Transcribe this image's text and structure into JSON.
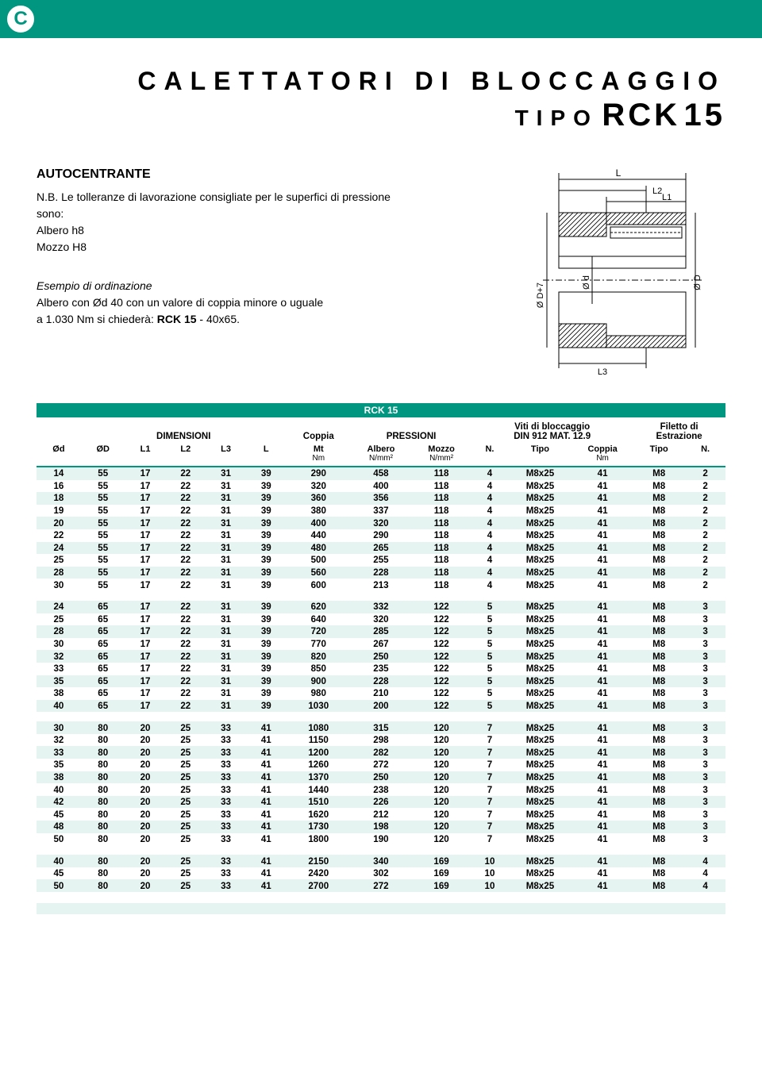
{
  "topbar": {
    "logo_letter": "C",
    "bg": "#009680"
  },
  "title": {
    "line1": "CALETTATORI DI BLOCCAGGIO",
    "tipo": "TIPO",
    "model": "RCK",
    "num": "15"
  },
  "note": {
    "heading": "AUTOCENTRANTE",
    "nb": "N.B. Le tolleranze di lavorazione consigliate per le superfici di pressione sono:",
    "line_a": "Albero h8",
    "line_b": "Mozzo H8",
    "example_head": "Esempio di ordinazione",
    "example_body1": "Albero con Ød 40 con un valore di coppia minore o uguale",
    "example_body2a": "a 1.030 Nm si chiederà: ",
    "example_body2b": "RCK 15",
    "example_body2c": " - 40x65."
  },
  "diagram_labels": {
    "L": "L",
    "L1": "L1",
    "L2": "L2",
    "L3": "L3",
    "d": "Ø d",
    "D": "Ø D",
    "D7": "Ø D+7"
  },
  "table": {
    "title": "RCK 15",
    "groups": {
      "dim": "DIMENSIONI",
      "coppia": "Coppia",
      "press": "PRESSIONI",
      "viti1": "Viti di bloccaggio",
      "viti2": "DIN 912 MAT. 12.9",
      "fil1": "Filetto di",
      "fil2": "Estrazione"
    },
    "cols": [
      "Ød",
      "ØD",
      "L1",
      "L2",
      "L3",
      "L",
      "Mt",
      "Albero",
      "Mozzo",
      "N.",
      "Tipo",
      "Coppia",
      "Tipo",
      "N."
    ],
    "units": [
      "",
      "",
      "",
      "",
      "",
      "",
      "Nm",
      "N/mm²",
      "N/mm²",
      "",
      "",
      "Nm",
      "",
      ""
    ],
    "blocks": [
      [
        [
          "14",
          "55",
          "17",
          "22",
          "31",
          "39",
          "290",
          "458",
          "118",
          "4",
          "M8x25",
          "41",
          "M8",
          "2"
        ],
        [
          "16",
          "55",
          "17",
          "22",
          "31",
          "39",
          "320",
          "400",
          "118",
          "4",
          "M8x25",
          "41",
          "M8",
          "2"
        ],
        [
          "18",
          "55",
          "17",
          "22",
          "31",
          "39",
          "360",
          "356",
          "118",
          "4",
          "M8x25",
          "41",
          "M8",
          "2"
        ],
        [
          "19",
          "55",
          "17",
          "22",
          "31",
          "39",
          "380",
          "337",
          "118",
          "4",
          "M8x25",
          "41",
          "M8",
          "2"
        ],
        [
          "20",
          "55",
          "17",
          "22",
          "31",
          "39",
          "400",
          "320",
          "118",
          "4",
          "M8x25",
          "41",
          "M8",
          "2"
        ],
        [
          "22",
          "55",
          "17",
          "22",
          "31",
          "39",
          "440",
          "290",
          "118",
          "4",
          "M8x25",
          "41",
          "M8",
          "2"
        ],
        [
          "24",
          "55",
          "17",
          "22",
          "31",
          "39",
          "480",
          "265",
          "118",
          "4",
          "M8x25",
          "41",
          "M8",
          "2"
        ],
        [
          "25",
          "55",
          "17",
          "22",
          "31",
          "39",
          "500",
          "255",
          "118",
          "4",
          "M8x25",
          "41",
          "M8",
          "2"
        ],
        [
          "28",
          "55",
          "17",
          "22",
          "31",
          "39",
          "560",
          "228",
          "118",
          "4",
          "M8x25",
          "41",
          "M8",
          "2"
        ],
        [
          "30",
          "55",
          "17",
          "22",
          "31",
          "39",
          "600",
          "213",
          "118",
          "4",
          "M8x25",
          "41",
          "M8",
          "2"
        ]
      ],
      [
        [
          "24",
          "65",
          "17",
          "22",
          "31",
          "39",
          "620",
          "332",
          "122",
          "5",
          "M8x25",
          "41",
          "M8",
          "3"
        ],
        [
          "25",
          "65",
          "17",
          "22",
          "31",
          "39",
          "640",
          "320",
          "122",
          "5",
          "M8x25",
          "41",
          "M8",
          "3"
        ],
        [
          "28",
          "65",
          "17",
          "22",
          "31",
          "39",
          "720",
          "285",
          "122",
          "5",
          "M8x25",
          "41",
          "M8",
          "3"
        ],
        [
          "30",
          "65",
          "17",
          "22",
          "31",
          "39",
          "770",
          "267",
          "122",
          "5",
          "M8x25",
          "41",
          "M8",
          "3"
        ],
        [
          "32",
          "65",
          "17",
          "22",
          "31",
          "39",
          "820",
          "250",
          "122",
          "5",
          "M8x25",
          "41",
          "M8",
          "3"
        ],
        [
          "33",
          "65",
          "17",
          "22",
          "31",
          "39",
          "850",
          "235",
          "122",
          "5",
          "M8x25",
          "41",
          "M8",
          "3"
        ],
        [
          "35",
          "65",
          "17",
          "22",
          "31",
          "39",
          "900",
          "228",
          "122",
          "5",
          "M8x25",
          "41",
          "M8",
          "3"
        ],
        [
          "38",
          "65",
          "17",
          "22",
          "31",
          "39",
          "980",
          "210",
          "122",
          "5",
          "M8x25",
          "41",
          "M8",
          "3"
        ],
        [
          "40",
          "65",
          "17",
          "22",
          "31",
          "39",
          "1030",
          "200",
          "122",
          "5",
          "M8x25",
          "41",
          "M8",
          "3"
        ]
      ],
      [
        [
          "30",
          "80",
          "20",
          "25",
          "33",
          "41",
          "1080",
          "315",
          "120",
          "7",
          "M8x25",
          "41",
          "M8",
          "3"
        ],
        [
          "32",
          "80",
          "20",
          "25",
          "33",
          "41",
          "1150",
          "298",
          "120",
          "7",
          "M8x25",
          "41",
          "M8",
          "3"
        ],
        [
          "33",
          "80",
          "20",
          "25",
          "33",
          "41",
          "1200",
          "282",
          "120",
          "7",
          "M8x25",
          "41",
          "M8",
          "3"
        ],
        [
          "35",
          "80",
          "20",
          "25",
          "33",
          "41",
          "1260",
          "272",
          "120",
          "7",
          "M8x25",
          "41",
          "M8",
          "3"
        ],
        [
          "38",
          "80",
          "20",
          "25",
          "33",
          "41",
          "1370",
          "250",
          "120",
          "7",
          "M8x25",
          "41",
          "M8",
          "3"
        ],
        [
          "40",
          "80",
          "20",
          "25",
          "33",
          "41",
          "1440",
          "238",
          "120",
          "7",
          "M8x25",
          "41",
          "M8",
          "3"
        ],
        [
          "42",
          "80",
          "20",
          "25",
          "33",
          "41",
          "1510",
          "226",
          "120",
          "7",
          "M8x25",
          "41",
          "M8",
          "3"
        ],
        [
          "45",
          "80",
          "20",
          "25",
          "33",
          "41",
          "1620",
          "212",
          "120",
          "7",
          "M8x25",
          "41",
          "M8",
          "3"
        ],
        [
          "48",
          "80",
          "20",
          "25",
          "33",
          "41",
          "1730",
          "198",
          "120",
          "7",
          "M8x25",
          "41",
          "M8",
          "3"
        ],
        [
          "50",
          "80",
          "20",
          "25",
          "33",
          "41",
          "1800",
          "190",
          "120",
          "7",
          "M8x25",
          "41",
          "M8",
          "3"
        ]
      ],
      [
        [
          "40",
          "80",
          "20",
          "25",
          "33",
          "41",
          "2150",
          "340",
          "169",
          "10",
          "M8x25",
          "41",
          "M8",
          "4"
        ],
        [
          "45",
          "80",
          "20",
          "25",
          "33",
          "41",
          "2420",
          "302",
          "169",
          "10",
          "M8x25",
          "41",
          "M8",
          "4"
        ],
        [
          "50",
          "80",
          "20",
          "25",
          "33",
          "41",
          "2700",
          "272",
          "169",
          "10",
          "M8x25",
          "41",
          "M8",
          "4"
        ]
      ]
    ],
    "colors": {
      "stripe": "#e6f4f1",
      "header_bar": "#009680"
    }
  }
}
